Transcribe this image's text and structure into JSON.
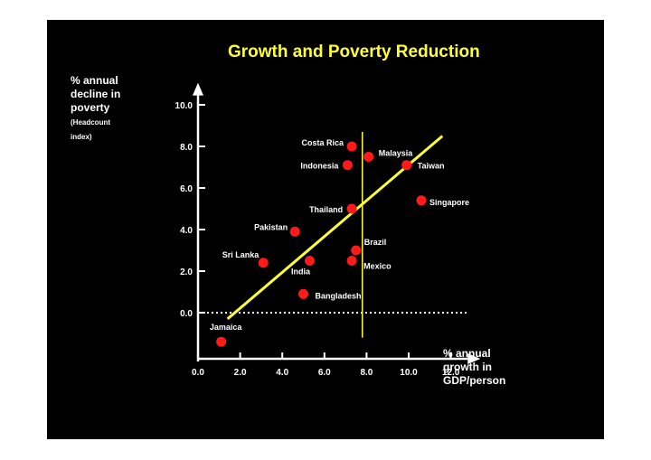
{
  "slide": {
    "background": "#000000",
    "title_color": "#ffff33",
    "text_color": "#ffffff",
    "point_color": "#ff1a1a",
    "line_color": "#ffff33"
  },
  "chart_data": {
    "type": "scatter",
    "title": "Growth and Poverty Reduction",
    "ylabel_lines": [
      "% annual",
      "decline in",
      "poverty",
      "(Headcount",
      "index)"
    ],
    "xlabel_lines": [
      "% annual",
      "growth in",
      "GDP/person"
    ],
    "xlim": [
      0,
      12.8
    ],
    "ylim": [
      -2.0,
      10.8
    ],
    "x_ticks": [
      0,
      2,
      4,
      6,
      8,
      10,
      12
    ],
    "x_tick_labels": [
      "0.0",
      "2.0",
      "4.0",
      "6.0",
      "8.0",
      "10.0",
      "12.0"
    ],
    "y_ticks": [
      0,
      2,
      4,
      6,
      8,
      10
    ],
    "y_tick_labels": [
      "0.0",
      "2.0",
      "4.0",
      "6.0",
      "8.0",
      "10.0"
    ],
    "points": [
      {
        "label": "Costa Rica",
        "x": 7.3,
        "y": 8.0
      },
      {
        "label": "Malaysia",
        "x": 8.1,
        "y": 7.5
      },
      {
        "label": "Indonesia",
        "x": 7.1,
        "y": 7.1
      },
      {
        "label": "Taiwan",
        "x": 9.9,
        "y": 7.1
      },
      {
        "label": "Singapore",
        "x": 10.6,
        "y": 5.4
      },
      {
        "label": "Thailand",
        "x": 7.3,
        "y": 5.0
      },
      {
        "label": "Pakistan",
        "x": 4.6,
        "y": 3.9
      },
      {
        "label": "Brazil",
        "x": 7.5,
        "y": 3.0
      },
      {
        "label": "Sri Lanka",
        "x": 3.1,
        "y": 2.4
      },
      {
        "label": "India",
        "x": 5.3,
        "y": 2.5
      },
      {
        "label": "Mexico",
        "x": 7.3,
        "y": 2.5
      },
      {
        "label": "Bangladesh",
        "x": 5.0,
        "y": 0.9
      },
      {
        "label": "Jamaica",
        "x": 1.1,
        "y": -1.4
      }
    ],
    "trend_line": {
      "x": [
        1.4,
        11.6
      ],
      "y": [
        -0.3,
        8.5
      ]
    },
    "reference_lines": {
      "horizontal_y": 0,
      "vertical_x": 7.8
    }
  }
}
